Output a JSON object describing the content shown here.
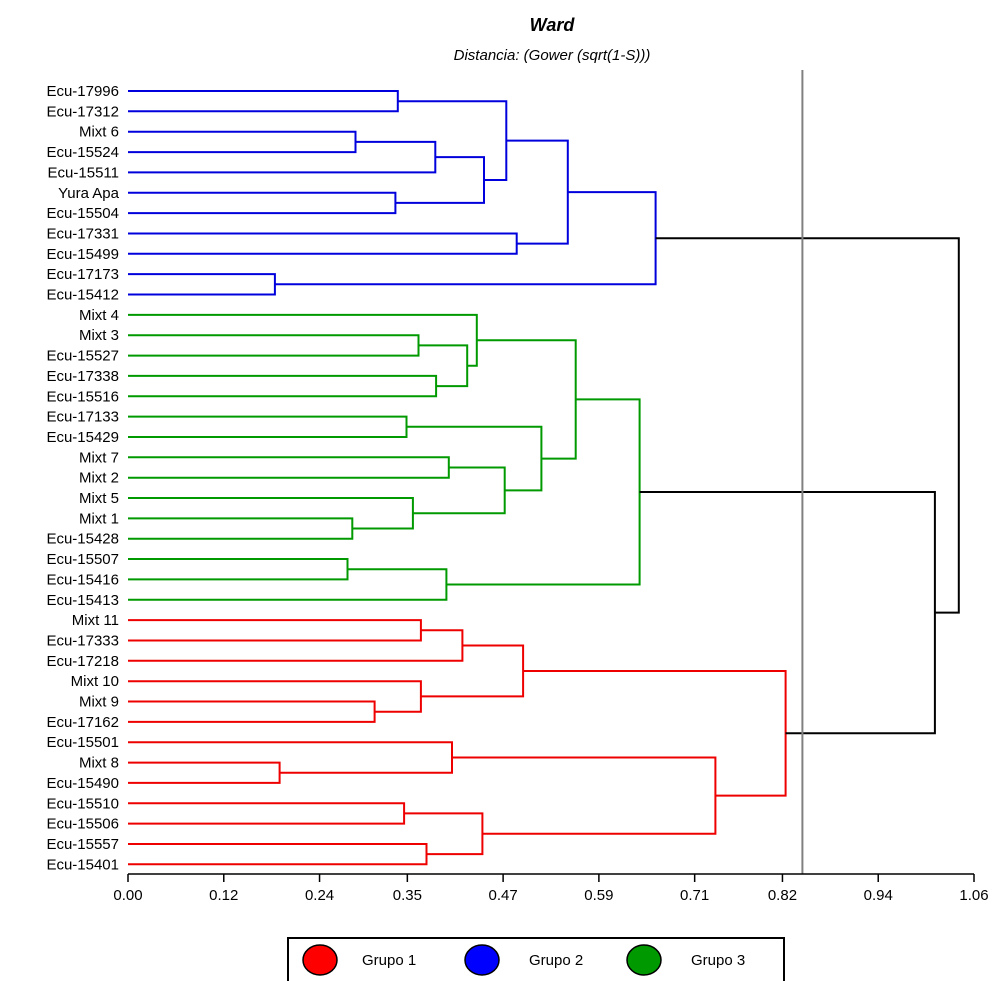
{
  "chart_data": {
    "type": "dendrogram",
    "title": "Ward",
    "subtitle": "Distancia: (Gower (sqrt(1-S)))",
    "xlim": [
      0.0,
      1.06
    ],
    "xticks": [
      "0.00",
      "0.12",
      "0.24",
      "0.35",
      "0.47",
      "0.59",
      "0.71",
      "0.82",
      "0.94",
      "1.06"
    ],
    "cut_line": 0.845,
    "leaves": [
      "Ecu-17996",
      "Ecu-17312",
      "Mixt 6",
      "Ecu-15524",
      "Ecu-15511",
      "Yura Apa",
      "Ecu-15504",
      "Ecu-17331",
      "Ecu-15499",
      "Ecu-17173",
      "Ecu-15412",
      "Mixt 4",
      "Mixt 3",
      "Ecu-15527",
      "Ecu-17338",
      "Ecu-15516",
      "Ecu-17133",
      "Ecu-15429",
      "Mixt 7",
      "Mixt 2",
      "Mixt 5",
      "Mixt 1",
      "Ecu-15428",
      "Ecu-15507",
      "Ecu-15416",
      "Ecu-15413",
      "Mixt 11",
      "Ecu-17333",
      "Ecu-17218",
      "Mixt 10",
      "Mixt 9",
      "Ecu-17162",
      "Ecu-15501",
      "Mixt 8",
      "Ecu-15490",
      "Ecu-15510",
      "Ecu-15506",
      "Ecu-15557",
      "Ecu-15401"
    ],
    "merges": [
      {
        "id": "n1",
        "a": 0,
        "b": 1,
        "h": 0.338,
        "g": "Grupo 2"
      },
      {
        "id": "n2",
        "a": 2,
        "b": 3,
        "h": 0.285,
        "g": "Grupo 2"
      },
      {
        "id": "n3",
        "a": "n2",
        "b": 4,
        "h": 0.385,
        "g": "Grupo 2"
      },
      {
        "id": "n4",
        "a": 5,
        "b": 6,
        "h": 0.335,
        "g": "Grupo 2"
      },
      {
        "id": "n5",
        "a": "n3",
        "b": "n4",
        "h": 0.446,
        "g": "Grupo 2"
      },
      {
        "id": "n6",
        "a": "n1",
        "b": "n5",
        "h": 0.474,
        "g": "Grupo 2"
      },
      {
        "id": "n7",
        "a": 7,
        "b": 8,
        "h": 0.487,
        "g": "Grupo 2"
      },
      {
        "id": "n8",
        "a": "n6",
        "b": "n7",
        "h": 0.551,
        "g": "Grupo 2"
      },
      {
        "id": "n9",
        "a": 9,
        "b": 10,
        "h": 0.184,
        "g": "Grupo 2"
      },
      {
        "id": "n10",
        "a": "n8",
        "b": "n9",
        "h": 0.661,
        "g": "Grupo 2"
      },
      {
        "id": "n11",
        "a": 12,
        "b": 13,
        "h": 0.364,
        "g": "Grupo 3"
      },
      {
        "id": "n12",
        "a": 14,
        "b": 15,
        "h": 0.386,
        "g": "Grupo 3"
      },
      {
        "id": "n13",
        "a": "n11",
        "b": "n12",
        "h": 0.425,
        "g": "Grupo 3"
      },
      {
        "id": "n14",
        "a": 11,
        "b": "n13",
        "h": 0.437,
        "g": "Grupo 3"
      },
      {
        "id": "n15",
        "a": 16,
        "b": 17,
        "h": 0.349,
        "g": "Grupo 3"
      },
      {
        "id": "n16",
        "a": 18,
        "b": 19,
        "h": 0.402,
        "g": "Grupo 3"
      },
      {
        "id": "n17",
        "a": 21,
        "b": 22,
        "h": 0.281,
        "g": "Grupo 3"
      },
      {
        "id": "n18",
        "a": 20,
        "b": "n17",
        "h": 0.357,
        "g": "Grupo 3"
      },
      {
        "id": "n19",
        "a": "n16",
        "b": "n18",
        "h": 0.472,
        "g": "Grupo 3"
      },
      {
        "id": "n20",
        "a": "n15",
        "b": "n19",
        "h": 0.518,
        "g": "Grupo 3"
      },
      {
        "id": "n21",
        "a": "n14",
        "b": "n20",
        "h": 0.561,
        "g": "Grupo 3"
      },
      {
        "id": "n22",
        "a": 23,
        "b": 24,
        "h": 0.275,
        "g": "Grupo 3"
      },
      {
        "id": "n23",
        "a": "n22",
        "b": 25,
        "h": 0.399,
        "g": "Grupo 3"
      },
      {
        "id": "n24",
        "a": "n21",
        "b": "n23",
        "h": 0.641,
        "g": "Grupo 3"
      },
      {
        "id": "n25",
        "a": 26,
        "b": 27,
        "h": 0.367,
        "g": "Grupo 1"
      },
      {
        "id": "n26",
        "a": "n25",
        "b": 28,
        "h": 0.419,
        "g": "Grupo 1"
      },
      {
        "id": "n27",
        "a": 30,
        "b": 31,
        "h": 0.309,
        "g": "Grupo 1"
      },
      {
        "id": "n28",
        "a": 29,
        "b": "n27",
        "h": 0.367,
        "g": "Grupo 1"
      },
      {
        "id": "n29",
        "a": "n26",
        "b": "n28",
        "h": 0.495,
        "g": "Grupo 1"
      },
      {
        "id": "n30",
        "a": 33,
        "b": 34,
        "h": 0.19,
        "g": "Grupo 1"
      },
      {
        "id": "n31",
        "a": 32,
        "b": "n30",
        "h": 0.406,
        "g": "Grupo 1"
      },
      {
        "id": "n32",
        "a": 35,
        "b": 36,
        "h": 0.346,
        "g": "Grupo 1"
      },
      {
        "id": "n33",
        "a": 37,
        "b": 38,
        "h": 0.374,
        "g": "Grupo 1"
      },
      {
        "id": "n34",
        "a": "n32",
        "b": "n33",
        "h": 0.444,
        "g": "Grupo 1"
      },
      {
        "id": "n35",
        "a": "n31",
        "b": "n34",
        "h": 0.736,
        "g": "Grupo 1"
      },
      {
        "id": "n36",
        "a": "n29",
        "b": "n35",
        "h": 0.824,
        "g": "Grupo 1"
      },
      {
        "id": "n37",
        "a": "n24",
        "b": "n36",
        "h": 1.011,
        "g": "root"
      },
      {
        "id": "n38",
        "a": "n10",
        "b": "n37",
        "h": 1.041,
        "g": "root"
      }
    ],
    "legend": [
      {
        "label": "Grupo 1",
        "color": "#ff0000"
      },
      {
        "label": "Grupo 2",
        "color": "#0000ff"
      },
      {
        "label": "Grupo 3",
        "color": "#009900"
      }
    ],
    "group_colors": {
      "Grupo 1": "#ee0000",
      "Grupo 2": "#0000dd",
      "Grupo 3": "#009900",
      "root": "#000000"
    },
    "cut_line_color": "#808080"
  }
}
